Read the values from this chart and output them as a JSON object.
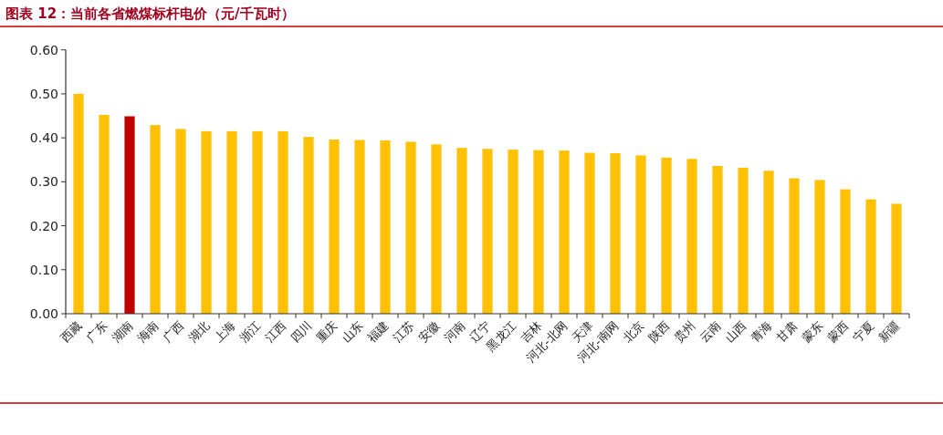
{
  "chart_data": {
    "type": "bar",
    "title": "图表 12：当前各省燃煤标杆电价（元/千瓦时）",
    "categories": [
      "西藏",
      "广东",
      "湖南",
      "海南",
      "广西",
      "湖北",
      "上海",
      "浙江",
      "江西",
      "四川",
      "重庆",
      "山东",
      "福建",
      "江苏",
      "安徽",
      "河南",
      "辽宁",
      "黑龙江",
      "吉林",
      "河北-北网",
      "天津",
      "河北-南网",
      "北京",
      "陕西",
      "贵州",
      "云南",
      "山西",
      "青海",
      "甘肃",
      "蒙东",
      "蒙西",
      "宁夏",
      "新疆"
    ],
    "values": [
      0.5,
      0.452,
      0.449,
      0.429,
      0.42,
      0.415,
      0.415,
      0.415,
      0.415,
      0.402,
      0.396,
      0.395,
      0.394,
      0.391,
      0.385,
      0.377,
      0.375,
      0.373,
      0.372,
      0.371,
      0.366,
      0.365,
      0.36,
      0.355,
      0.352,
      0.336,
      0.332,
      0.325,
      0.308,
      0.304,
      0.283,
      0.26,
      0.25
    ],
    "colors": [
      "#ffc000",
      "#ffc000",
      "#c00000",
      "#ffc000",
      "#ffc000",
      "#ffc000",
      "#ffc000",
      "#ffc000",
      "#ffc000",
      "#ffc000",
      "#ffc000",
      "#ffc000",
      "#ffc000",
      "#ffc000",
      "#ffc000",
      "#ffc000",
      "#ffc000",
      "#ffc000",
      "#ffc000",
      "#ffc000",
      "#ffc000",
      "#ffc000",
      "#ffc000",
      "#ffc000",
      "#ffc000",
      "#ffc000",
      "#ffc000",
      "#ffc000",
      "#ffc000",
      "#ffc000",
      "#ffc000",
      "#ffc000",
      "#ffc000"
    ],
    "ylim": [
      0,
      0.6
    ],
    "yticks": [
      {
        "value": 0,
        "label": "0.00"
      },
      {
        "value": 0.1,
        "label": "0.10"
      },
      {
        "value": 0.2,
        "label": "0.20"
      },
      {
        "value": 0.3,
        "label": "0.30"
      },
      {
        "value": 0.4,
        "label": "0.40"
      },
      {
        "value": 0.5,
        "label": "0.50"
      },
      {
        "value": 0.6,
        "label": "0.60"
      }
    ],
    "grid": false
  }
}
